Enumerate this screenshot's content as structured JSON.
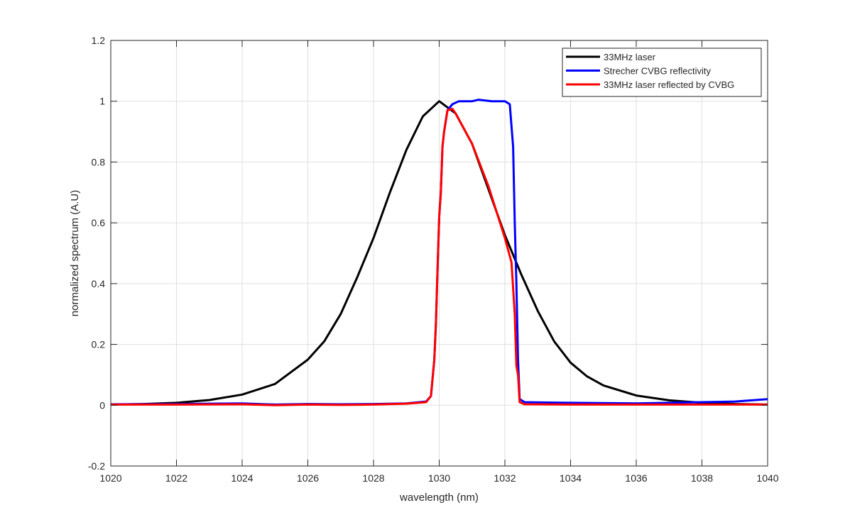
{
  "chart_data": {
    "type": "line",
    "title": "",
    "xlabel": "wavelength (nm)",
    "ylabel": "normalized spectrum (A.U)",
    "xlim": [
      1020,
      1040
    ],
    "ylim": [
      -0.2,
      1.2
    ],
    "xticks": [
      1020,
      1022,
      1024,
      1026,
      1028,
      1030,
      1032,
      1034,
      1036,
      1038,
      1040
    ],
    "yticks": [
      -0.2,
      0,
      0.2,
      0.4,
      0.6,
      0.8,
      1,
      1.2
    ],
    "grid": true,
    "legend_position": "top-right",
    "series": [
      {
        "name": "33MHz laser",
        "color": "#000000",
        "x": [
          1020,
          1021,
          1022,
          1023,
          1024,
          1025,
          1026,
          1026.5,
          1027,
          1027.5,
          1028,
          1028.5,
          1029,
          1029.5,
          1030,
          1030.5,
          1031,
          1031.5,
          1032,
          1032.5,
          1033,
          1033.5,
          1034,
          1034.5,
          1035,
          1036,
          1037,
          1038,
          1039,
          1040
        ],
        "y": [
          0.002,
          0.004,
          0.008,
          0.017,
          0.035,
          0.07,
          0.15,
          0.21,
          0.3,
          0.42,
          0.55,
          0.7,
          0.84,
          0.95,
          1.0,
          0.96,
          0.86,
          0.71,
          0.56,
          0.43,
          0.31,
          0.21,
          0.14,
          0.095,
          0.065,
          0.032,
          0.016,
          0.008,
          0.004,
          0.002
        ]
      },
      {
        "name": "Strecher CVBG reflectivity",
        "color": "#0000ff",
        "x": [
          1020,
          1022,
          1024,
          1025,
          1026,
          1027,
          1028,
          1029,
          1029.6,
          1029.75,
          1029.85,
          1029.9,
          1029.95,
          1030,
          1030.05,
          1030.1,
          1030.15,
          1030.25,
          1030.4,
          1030.6,
          1031,
          1031.2,
          1031.6,
          1032,
          1032.15,
          1032.25,
          1032.3,
          1032.35,
          1032.4,
          1032.45,
          1032.6,
          1034,
          1036,
          1038,
          1039,
          1040
        ],
        "y": [
          0.003,
          0.004,
          0.006,
          0.002,
          0.004,
          0.003,
          0.004,
          0.006,
          0.012,
          0.03,
          0.15,
          0.27,
          0.45,
          0.62,
          0.7,
          0.85,
          0.9,
          0.97,
          0.99,
          1.0,
          1.0,
          1.005,
          1.0,
          1.0,
          0.99,
          0.85,
          0.6,
          0.4,
          0.15,
          0.02,
          0.01,
          0.008,
          0.006,
          0.01,
          0.012,
          0.02
        ]
      },
      {
        "name": "33MHz laser reflected by CVBG",
        "color": "#ff0000",
        "x": [
          1020,
          1022,
          1024,
          1025,
          1026,
          1027,
          1028,
          1029,
          1029.6,
          1029.75,
          1029.85,
          1029.9,
          1029.95,
          1030,
          1030.05,
          1030.1,
          1030.15,
          1030.25,
          1030.4,
          1030.5,
          1031,
          1031.5,
          1032,
          1032.2,
          1032.3,
          1032.35,
          1032.4,
          1032.45,
          1032.6,
          1034,
          1036,
          1038,
          1040
        ],
        "y": [
          0.002,
          0.002,
          0.003,
          0.0,
          0.002,
          0.001,
          0.002,
          0.005,
          0.01,
          0.03,
          0.15,
          0.27,
          0.45,
          0.62,
          0.7,
          0.85,
          0.9,
          0.97,
          0.975,
          0.96,
          0.86,
          0.72,
          0.55,
          0.47,
          0.3,
          0.13,
          0.1,
          0.01,
          0.003,
          0.002,
          0.002,
          0.002,
          0.002
        ]
      }
    ]
  }
}
